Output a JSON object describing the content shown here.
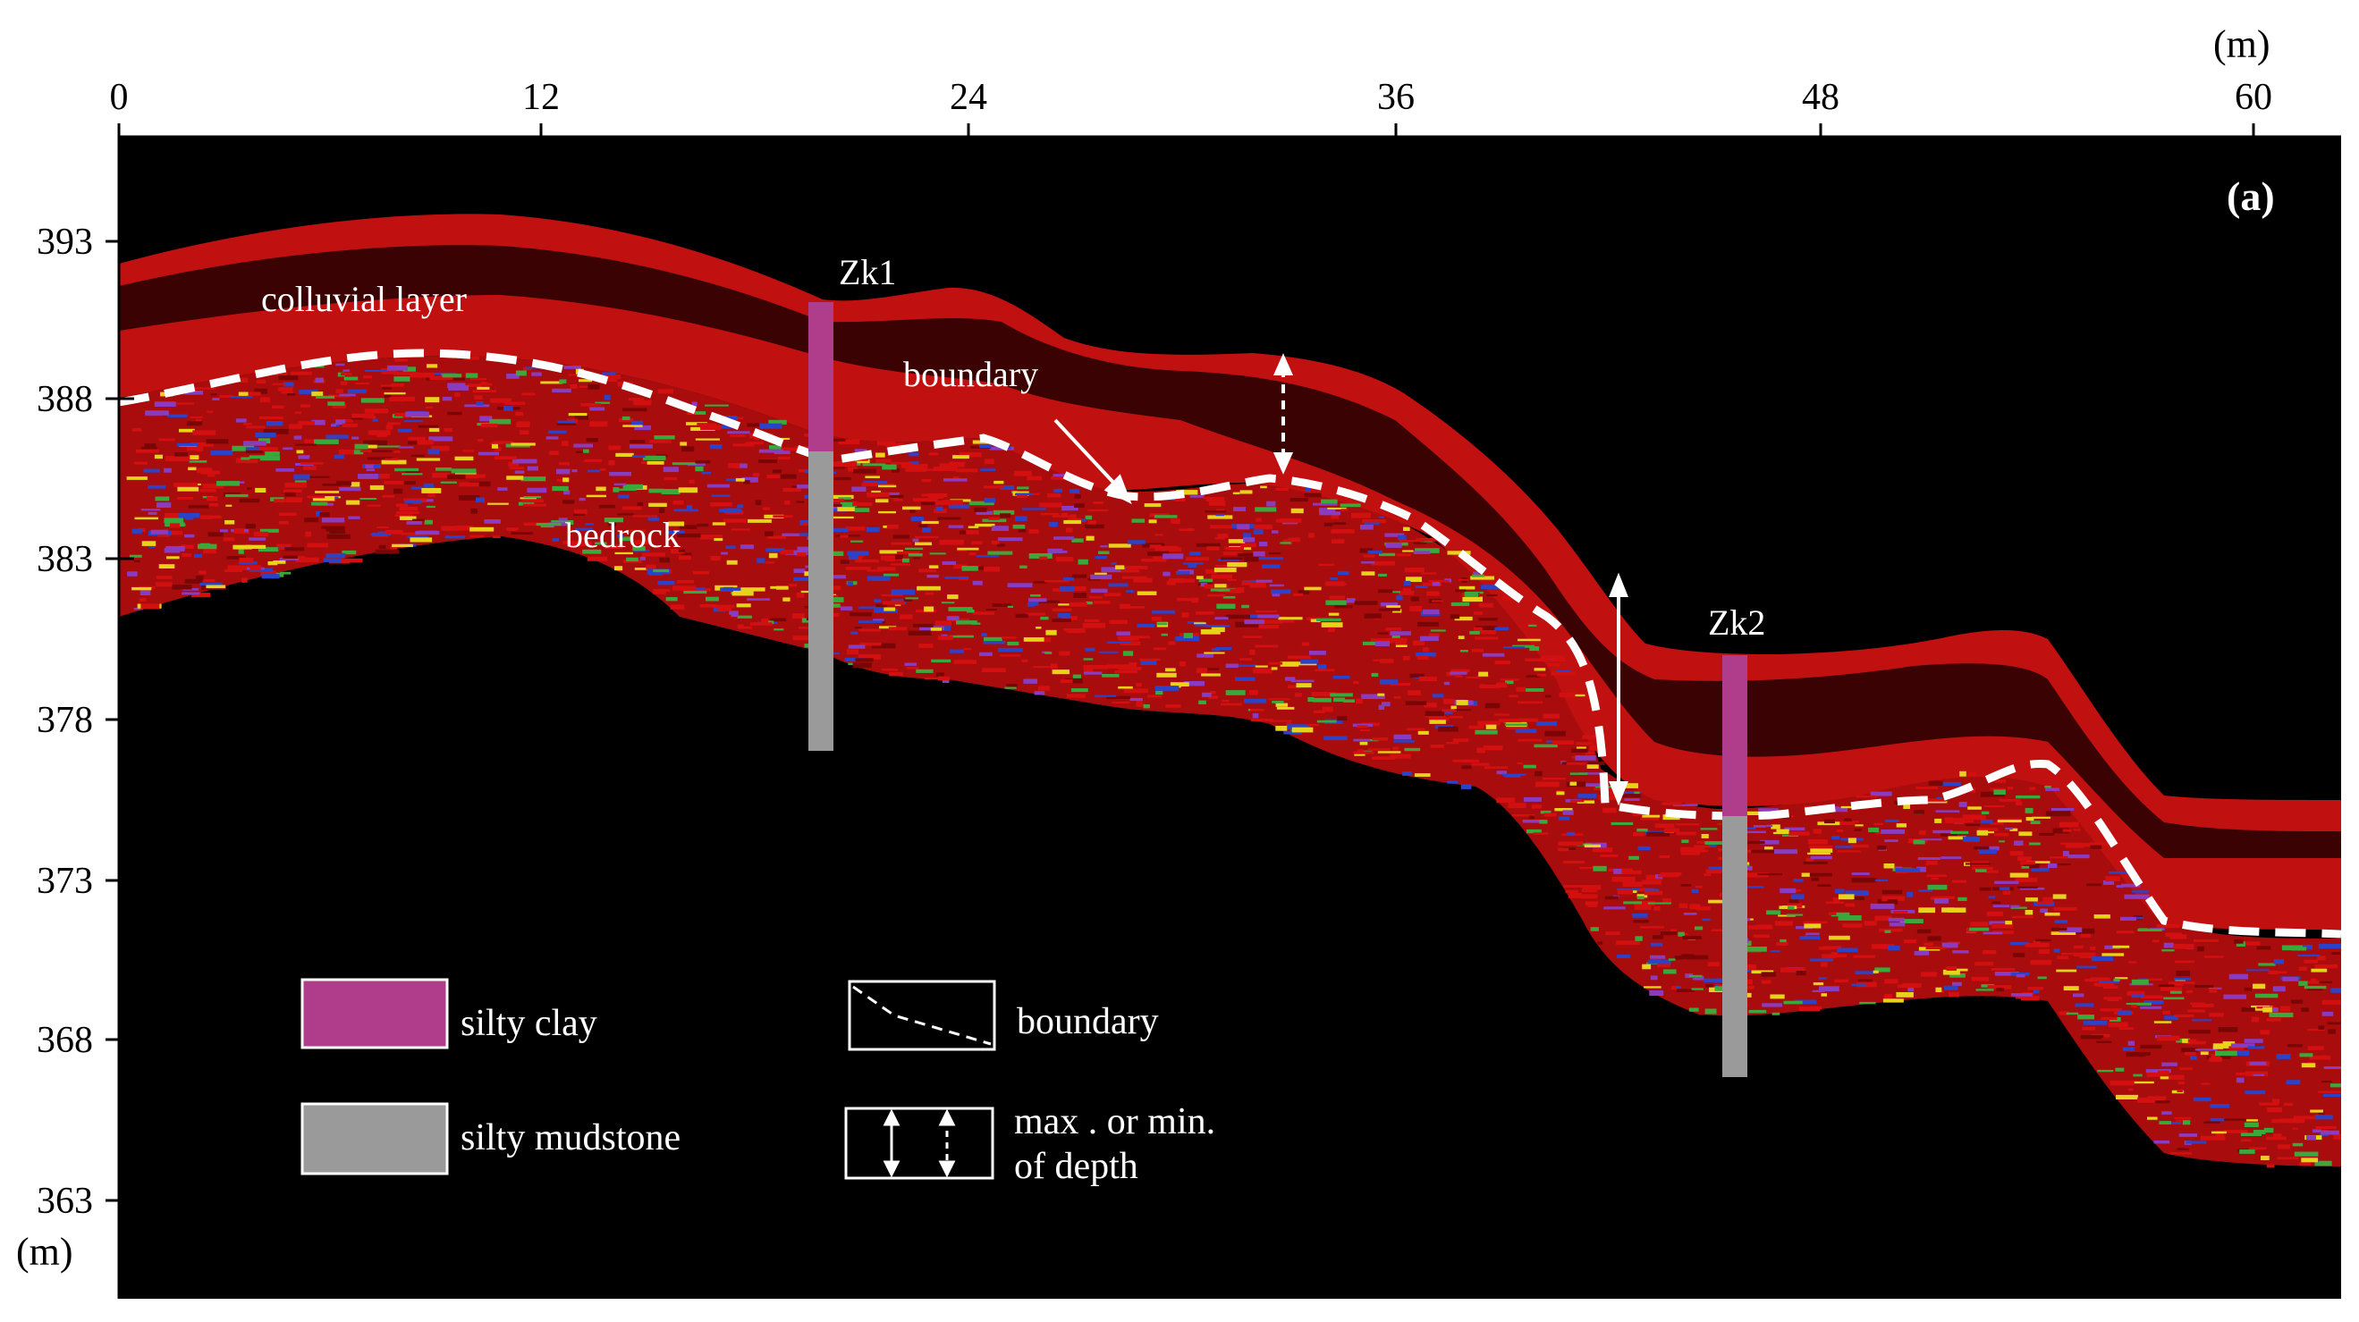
{
  "figure": {
    "panel_label": "(a)",
    "x_unit": "(m)",
    "y_unit": "(m)",
    "x_ticks": [
      "0",
      "12",
      "24",
      "36",
      "48",
      "60"
    ],
    "y_ticks": [
      "393",
      "388",
      "383",
      "378",
      "373",
      "368",
      "363"
    ],
    "labels": {
      "colluvial": "colluvial layer",
      "bedrock": "bedrock",
      "boundary": "boundary",
      "zk1": "Zk1",
      "zk2": "Zk2"
    },
    "legend": {
      "silty_clay": "silty clay",
      "silty_mudstone": "silty mudstone",
      "boundary": "boundary",
      "depth_line1": "max . or min.",
      "depth_line2": "of depth"
    },
    "colors": {
      "background": "#000000",
      "silty_clay": "#b03c8c",
      "silty_mudstone": "#9a9a9a",
      "boundary": "#ffffff",
      "red_layer": "#d40f0f",
      "dark_red": "#7a0505",
      "yellow": "#e8d21c",
      "green": "#3aa83a",
      "blue": "#2c43c8",
      "purple": "#8a3cc0"
    },
    "icons": [
      "double-arrow-solid-icon",
      "double-arrow-dashed-icon",
      "dashed-line-icon"
    ]
  }
}
